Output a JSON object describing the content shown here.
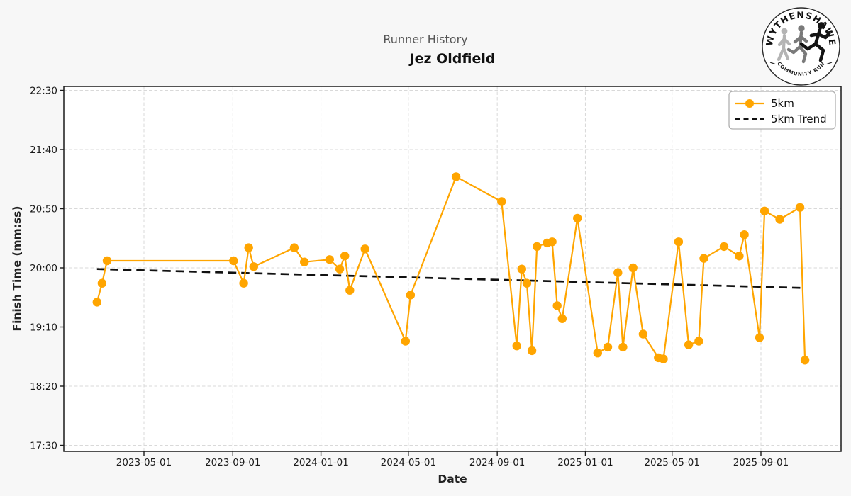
{
  "header": {
    "subtitle": "Runner History",
    "title": "Jez Oldfield"
  },
  "logo": {
    "top_text": "WYTHENSHAWE",
    "bottom_text": "COMMUNITY RUN"
  },
  "colors": {
    "series_5km": "#FFA500",
    "trend": "#111111",
    "grid": "#d9d9d9",
    "figure_background": "#f7f7f7",
    "plot_background": "#ffffff"
  },
  "chart_data": {
    "type": "line",
    "title": "Jez Oldfield",
    "subtitle": "Runner History",
    "xlabel": "Date",
    "ylabel": "Finish Time (mm:ss)",
    "grid": true,
    "legend_position": "upper right",
    "y_ticks": [
      "22:30",
      "21:40",
      "20:50",
      "20:00",
      "19:10",
      "18:20",
      "17:30"
    ],
    "ylim": [
      "17:25",
      "22:33"
    ],
    "x_ticks": [
      "2023-05-01",
      "2023-09-01",
      "2024-01-01",
      "2024-05-01",
      "2024-09-01",
      "2025-01-01",
      "2025-05-01",
      "2025-09-01"
    ],
    "xlim": [
      "2023-01-07",
      "2025-12-20"
    ],
    "series": [
      {
        "name": "5km",
        "style": "solid-with-markers",
        "color": "#FFA500",
        "points": [
          {
            "date": "2023-02-25",
            "time": "19:31"
          },
          {
            "date": "2023-03-04",
            "time": "19:47"
          },
          {
            "date": "2023-03-11",
            "time": "20:06"
          },
          {
            "date": "2023-09-02",
            "time": "20:06"
          },
          {
            "date": "2023-09-16",
            "time": "19:47"
          },
          {
            "date": "2023-09-23",
            "time": "20:17"
          },
          {
            "date": "2023-09-30",
            "time": "20:01"
          },
          {
            "date": "2023-11-25",
            "time": "20:17"
          },
          {
            "date": "2023-12-09",
            "time": "20:05"
          },
          {
            "date": "2024-01-13",
            "time": "20:07"
          },
          {
            "date": "2024-01-27",
            "time": "19:59"
          },
          {
            "date": "2024-02-03",
            "time": "20:10"
          },
          {
            "date": "2024-02-10",
            "time": "19:41"
          },
          {
            "date": "2024-03-02",
            "time": "20:16"
          },
          {
            "date": "2024-04-27",
            "time": "18:58"
          },
          {
            "date": "2024-05-04",
            "time": "19:37"
          },
          {
            "date": "2024-07-06",
            "time": "21:17"
          },
          {
            "date": "2024-09-07",
            "time": "20:56"
          },
          {
            "date": "2024-09-28",
            "time": "18:54"
          },
          {
            "date": "2024-10-05",
            "time": "19:59"
          },
          {
            "date": "2024-10-12",
            "time": "19:47"
          },
          {
            "date": "2024-10-19",
            "time": "18:50"
          },
          {
            "date": "2024-10-26",
            "time": "20:18"
          },
          {
            "date": "2024-11-09",
            "time": "20:21"
          },
          {
            "date": "2024-11-16",
            "time": "20:22"
          },
          {
            "date": "2024-11-23",
            "time": "19:28"
          },
          {
            "date": "2024-11-30",
            "time": "19:17"
          },
          {
            "date": "2024-12-21",
            "time": "20:42"
          },
          {
            "date": "2025-01-18",
            "time": "18:48"
          },
          {
            "date": "2025-02-01",
            "time": "18:53"
          },
          {
            "date": "2025-02-15",
            "time": "19:56"
          },
          {
            "date": "2025-02-22",
            "time": "18:53"
          },
          {
            "date": "2025-03-08",
            "time": "20:00"
          },
          {
            "date": "2025-03-22",
            "time": "19:04"
          },
          {
            "date": "2025-04-12",
            "time": "18:44"
          },
          {
            "date": "2025-04-19",
            "time": "18:43"
          },
          {
            "date": "2025-05-10",
            "time": "20:22"
          },
          {
            "date": "2025-05-24",
            "time": "18:55"
          },
          {
            "date": "2025-06-07",
            "time": "18:58"
          },
          {
            "date": "2025-06-14",
            "time": "20:08"
          },
          {
            "date": "2025-07-12",
            "time": "20:18"
          },
          {
            "date": "2025-08-02",
            "time": "20:10"
          },
          {
            "date": "2025-08-09",
            "time": "20:28"
          },
          {
            "date": "2025-08-30",
            "time": "19:01"
          },
          {
            "date": "2025-09-06",
            "time": "20:48"
          },
          {
            "date": "2025-09-27",
            "time": "20:41"
          },
          {
            "date": "2025-10-25",
            "time": "20:51"
          },
          {
            "date": "2025-11-01",
            "time": "18:42"
          }
        ]
      },
      {
        "name": "5km Trend",
        "style": "dashed",
        "color": "#111111",
        "points": [
          {
            "date": "2023-02-25",
            "time": "19:59"
          },
          {
            "date": "2025-11-01",
            "time": "19:43"
          }
        ]
      }
    ]
  }
}
